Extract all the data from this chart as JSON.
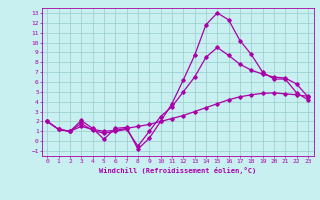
{
  "title": "",
  "xlabel": "Windchill (Refroidissement éolien,°C)",
  "ylabel": "",
  "background_color": "#c8f0f0",
  "line_color": "#aa00aa",
  "grid_color": "#99cccc",
  "xlim": [
    -0.5,
    23.5
  ],
  "ylim": [
    -1.5,
    13.5
  ],
  "xticks": [
    0,
    1,
    2,
    3,
    4,
    5,
    6,
    7,
    8,
    9,
    10,
    11,
    12,
    13,
    14,
    15,
    16,
    17,
    18,
    19,
    20,
    21,
    22,
    23
  ],
  "yticks": [
    -1,
    0,
    1,
    2,
    3,
    4,
    5,
    6,
    7,
    8,
    9,
    10,
    11,
    12,
    13
  ],
  "line1_x": [
    0,
    1,
    2,
    3,
    4,
    5,
    6,
    7,
    8,
    9,
    10,
    11,
    12,
    13,
    14,
    15,
    16,
    17,
    18,
    19,
    20,
    21,
    22,
    23
  ],
  "line1_y": [
    2.0,
    1.2,
    1.0,
    1.5,
    1.2,
    1.0,
    1.1,
    1.3,
    1.5,
    1.7,
    2.0,
    2.3,
    2.6,
    3.0,
    3.4,
    3.8,
    4.2,
    4.5,
    4.7,
    4.85,
    4.9,
    4.8,
    4.7,
    4.55
  ],
  "line2_x": [
    0,
    1,
    2,
    3,
    4,
    5,
    6,
    7,
    8,
    9,
    10,
    11,
    12,
    13,
    14,
    15,
    16,
    17,
    18,
    19,
    20,
    21,
    22,
    23
  ],
  "line2_y": [
    2.0,
    1.2,
    1.0,
    2.1,
    1.3,
    0.2,
    1.3,
    1.4,
    -0.8,
    0.3,
    2.0,
    3.8,
    6.2,
    8.7,
    11.8,
    13.0,
    12.3,
    10.2,
    8.8,
    7.0,
    6.3,
    6.3,
    4.9,
    4.2
  ],
  "line3_x": [
    0,
    1,
    2,
    3,
    4,
    5,
    6,
    7,
    8,
    9,
    10,
    11,
    12,
    13,
    14,
    15,
    16,
    17,
    18,
    19,
    20,
    21,
    22,
    23
  ],
  "line3_y": [
    2.0,
    1.2,
    1.0,
    1.8,
    1.1,
    0.8,
    1.0,
    1.2,
    -0.5,
    1.0,
    2.5,
    3.5,
    5.0,
    6.5,
    8.5,
    9.5,
    8.7,
    7.8,
    7.2,
    6.8,
    6.5,
    6.4,
    5.8,
    4.5
  ],
  "marker": "D",
  "markersize": 1.8,
  "linewidth": 0.9,
  "tick_fontsize": 4.5,
  "xlabel_fontsize": 5.0
}
